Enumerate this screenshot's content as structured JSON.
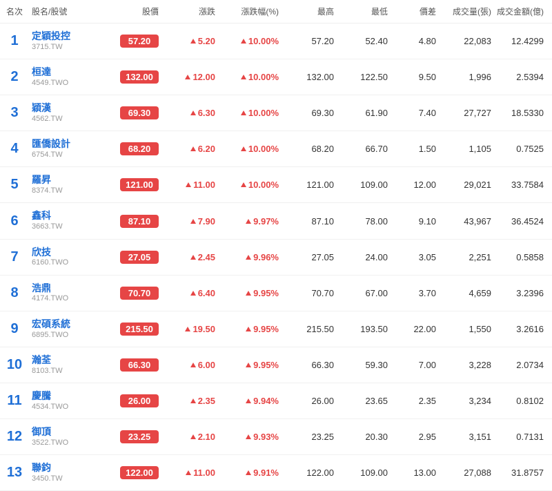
{
  "headers": {
    "rank": "名次",
    "name": "股名/股號",
    "price": "股價",
    "change": "漲跌",
    "pct": "漲跌幅(%)",
    "high": "最高",
    "low": "最低",
    "diff": "價差",
    "vol": "成交量(張)",
    "amt": "成交金額(億)"
  },
  "colors": {
    "up": "#e64545",
    "link": "#1f6fd6",
    "muted": "#999999",
    "border": "#f0f0f0"
  },
  "rows": [
    {
      "rank": "1",
      "name": "定穎投控",
      "code": "3715.TW",
      "price": "57.20",
      "change": "5.20",
      "pct": "10.00%",
      "high": "57.20",
      "low": "52.40",
      "diff": "4.80",
      "vol": "22,083",
      "amt": "12.4299"
    },
    {
      "rank": "2",
      "name": "桓達",
      "code": "4549.TWO",
      "price": "132.00",
      "change": "12.00",
      "pct": "10.00%",
      "high": "132.00",
      "low": "122.50",
      "diff": "9.50",
      "vol": "1,996",
      "amt": "2.5394"
    },
    {
      "rank": "3",
      "name": "穎漢",
      "code": "4562.TW",
      "price": "69.30",
      "change": "6.30",
      "pct": "10.00%",
      "high": "69.30",
      "low": "61.90",
      "diff": "7.40",
      "vol": "27,727",
      "amt": "18.5330"
    },
    {
      "rank": "4",
      "name": "匯僑設計",
      "code": "6754.TW",
      "price": "68.20",
      "change": "6.20",
      "pct": "10.00%",
      "high": "68.20",
      "low": "66.70",
      "diff": "1.50",
      "vol": "1,105",
      "amt": "0.7525"
    },
    {
      "rank": "5",
      "name": "羅昇",
      "code": "8374.TW",
      "price": "121.00",
      "change": "11.00",
      "pct": "10.00%",
      "high": "121.00",
      "low": "109.00",
      "diff": "12.00",
      "vol": "29,021",
      "amt": "33.7584"
    },
    {
      "rank": "6",
      "name": "鑫科",
      "code": "3663.TW",
      "price": "87.10",
      "change": "7.90",
      "pct": "9.97%",
      "high": "87.10",
      "low": "78.00",
      "diff": "9.10",
      "vol": "43,967",
      "amt": "36.4524"
    },
    {
      "rank": "7",
      "name": "欣技",
      "code": "6160.TWO",
      "price": "27.05",
      "change": "2.45",
      "pct": "9.96%",
      "high": "27.05",
      "low": "24.00",
      "diff": "3.05",
      "vol": "2,251",
      "amt": "0.5858"
    },
    {
      "rank": "8",
      "name": "浩鼎",
      "code": "4174.TWO",
      "price": "70.70",
      "change": "6.40",
      "pct": "9.95%",
      "high": "70.70",
      "low": "67.00",
      "diff": "3.70",
      "vol": "4,659",
      "amt": "3.2396"
    },
    {
      "rank": "9",
      "name": "宏碩系統",
      "code": "6895.TWO",
      "price": "215.50",
      "change": "19.50",
      "pct": "9.95%",
      "high": "215.50",
      "low": "193.50",
      "diff": "22.00",
      "vol": "1,550",
      "amt": "3.2616"
    },
    {
      "rank": "10",
      "name": "瀚荃",
      "code": "8103.TW",
      "price": "66.30",
      "change": "6.00",
      "pct": "9.95%",
      "high": "66.30",
      "low": "59.30",
      "diff": "7.00",
      "vol": "3,228",
      "amt": "2.0734"
    },
    {
      "rank": "11",
      "name": "慶騰",
      "code": "4534.TWO",
      "price": "26.00",
      "change": "2.35",
      "pct": "9.94%",
      "high": "26.00",
      "low": "23.65",
      "diff": "2.35",
      "vol": "3,234",
      "amt": "0.8102"
    },
    {
      "rank": "12",
      "name": "御頂",
      "code": "3522.TWO",
      "price": "23.25",
      "change": "2.10",
      "pct": "9.93%",
      "high": "23.25",
      "low": "20.30",
      "diff": "2.95",
      "vol": "3,151",
      "amt": "0.7131"
    },
    {
      "rank": "13",
      "name": "聯鈞",
      "code": "3450.TW",
      "price": "122.00",
      "change": "11.00",
      "pct": "9.91%",
      "high": "122.00",
      "low": "109.00",
      "diff": "13.00",
      "vol": "27,088",
      "amt": "31.8757"
    }
  ]
}
